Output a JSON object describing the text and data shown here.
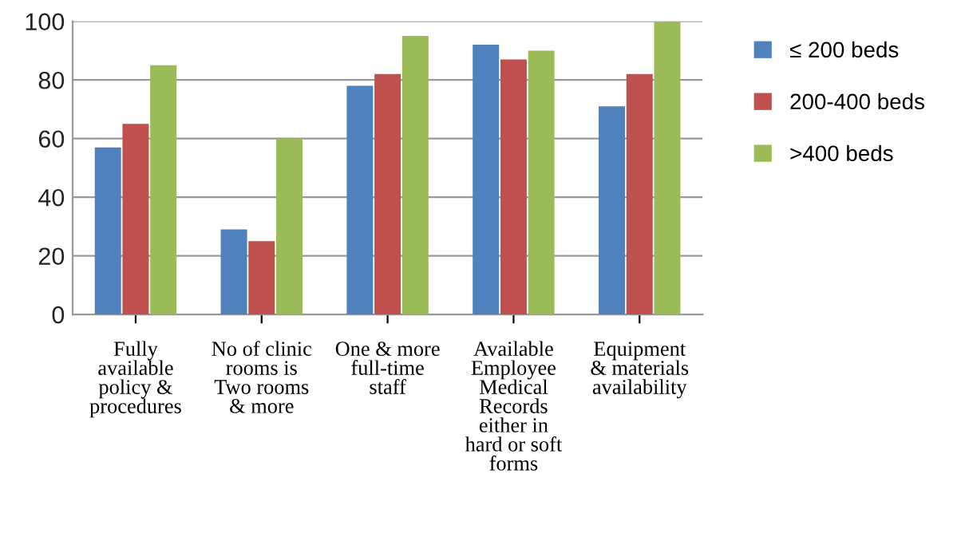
{
  "chart_data": {
    "type": "bar",
    "categories": [
      "Fully\navailable\npolicy &\nprocedures",
      "No of clinic\nrooms is\nTwo rooms\n& more",
      "One & more\nfull-time\nstaff",
      "Available\nEmployee\nMedical\nRecords\neither in\nhard or soft\nforms",
      "Equipment\n& materials\navailability"
    ],
    "series": [
      {
        "name": "≤ 200 beds",
        "color": "#4f81bd",
        "values": [
          57,
          29,
          78,
          92,
          71
        ]
      },
      {
        "name": "200-400 beds",
        "color": "#c0504d",
        "values": [
          65,
          25,
          82,
          87,
          82
        ]
      },
      {
        "name": ">400 beds",
        "color": "#9bbb59",
        "values": [
          85,
          60,
          95,
          90,
          100
        ]
      }
    ],
    "ylim": [
      0,
      100
    ],
    "yticks": [
      0,
      20,
      40,
      60,
      80,
      100
    ],
    "grid": "y",
    "legend": "right"
  }
}
